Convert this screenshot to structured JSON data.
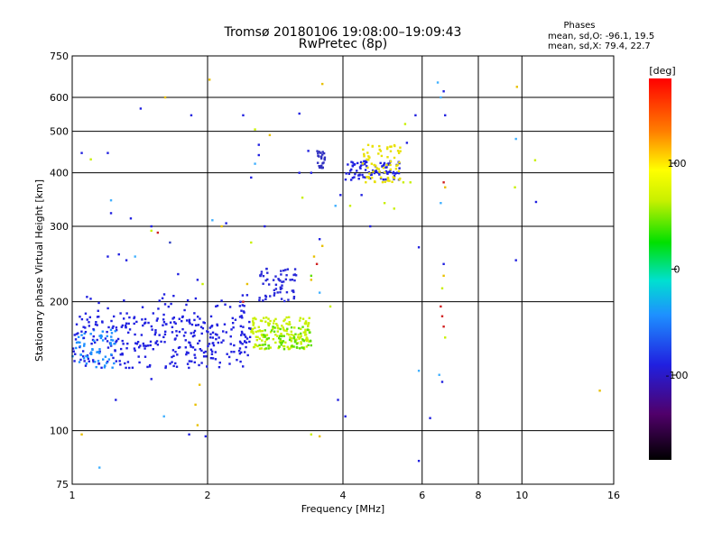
{
  "chart_data": {
    "type": "scatter",
    "title": "Tromsø 20180106 19:08:00–19:09:43",
    "subtitle": "RwPretec (8p)",
    "xlabel": "Frequency [MHz]",
    "ylabel": "Stationary phase Virtual Height [km]",
    "x_scale": "log",
    "y_scale": "log",
    "xlim": [
      1,
      16
    ],
    "ylim": [
      75,
      750
    ],
    "x_ticks": [
      1,
      2,
      4,
      6,
      8,
      10,
      16
    ],
    "y_ticks": [
      75,
      100,
      200,
      300,
      400,
      500,
      600,
      750
    ],
    "grid": true,
    "stats": {
      "heading": "Phases",
      "line_o": "mean, sd,O:  -96.1, 19.5",
      "line_x": "mean, sd,X:  79.4, 22.7"
    },
    "colorbar": {
      "label": "[deg]",
      "min": -180,
      "max": 180,
      "ticks": [
        100,
        0,
        -100
      ]
    },
    "clusters": [
      {
        "name": "o-low",
        "color": "#2020e0",
        "x_range": [
          1.0,
          2.45
        ],
        "y_range": [
          140,
          185
        ],
        "count": 260
      },
      {
        "name": "o-low-cyan",
        "color": "#1e90ff",
        "x_range": [
          1.0,
          1.25
        ],
        "y_range": [
          140,
          172
        ],
        "count": 60
      },
      {
        "name": "o-spread",
        "color": "#2020e0",
        "x_range": [
          1.05,
          2.3
        ],
        "y_range": [
          160,
          210
        ],
        "count": 70
      },
      {
        "name": "o-steep",
        "color": "#2020e0",
        "x_range": [
          2.35,
          2.5
        ],
        "y_range": [
          150,
          215
        ],
        "count": 30
      },
      {
        "name": "o-mid",
        "color": "#2828d8",
        "x_range": [
          2.6,
          3.15
        ],
        "y_range": [
          200,
          240
        ],
        "count": 60
      },
      {
        "name": "x-low",
        "color": "#c8f000",
        "x_range": [
          2.5,
          3.4
        ],
        "y_range": [
          155,
          185
        ],
        "count": 150
      },
      {
        "name": "x-green",
        "color": "#60e000",
        "x_range": [
          2.6,
          3.4
        ],
        "y_range": [
          155,
          175
        ],
        "count": 60
      },
      {
        "name": "o-high",
        "color": "#2020e0",
        "x_range": [
          4.05,
          5.35
        ],
        "y_range": [
          385,
          430
        ],
        "count": 90
      },
      {
        "name": "x-high",
        "color": "#e8e000",
        "x_range": [
          4.4,
          5.4
        ],
        "y_range": [
          380,
          465
        ],
        "count": 70
      },
      {
        "name": "o-high-2",
        "color": "#3030c0",
        "x_range": [
          3.5,
          3.65
        ],
        "y_range": [
          410,
          450
        ],
        "count": 25
      }
    ],
    "scatter_points": [
      {
        "x": 1.42,
        "y": 565,
        "color": "#2020e0"
      },
      {
        "x": 1.84,
        "y": 545,
        "color": "#2020e0"
      },
      {
        "x": 2.4,
        "y": 545,
        "color": "#2020e0"
      },
      {
        "x": 1.61,
        "y": 600,
        "color": "#e8c000"
      },
      {
        "x": 2.02,
        "y": 660,
        "color": "#e8c000"
      },
      {
        "x": 3.6,
        "y": 645,
        "color": "#e8c000"
      },
      {
        "x": 3.2,
        "y": 550,
        "color": "#2020e0"
      },
      {
        "x": 1.05,
        "y": 445,
        "color": "#2020e0"
      },
      {
        "x": 1.2,
        "y": 445,
        "color": "#2020e0"
      },
      {
        "x": 1.1,
        "y": 430,
        "color": "#c8f000"
      },
      {
        "x": 1.22,
        "y": 345,
        "color": "#40b0ff"
      },
      {
        "x": 1.22,
        "y": 322,
        "color": "#2020e0"
      },
      {
        "x": 1.35,
        "y": 313,
        "color": "#2020e0"
      },
      {
        "x": 1.5,
        "y": 300,
        "color": "#2020e0"
      },
      {
        "x": 1.5,
        "y": 293,
        "color": "#c8f000"
      },
      {
        "x": 1.65,
        "y": 275,
        "color": "#3040c0"
      },
      {
        "x": 1.55,
        "y": 290,
        "color": "#d02020"
      },
      {
        "x": 2.05,
        "y": 310,
        "color": "#40b0ff"
      },
      {
        "x": 2.2,
        "y": 305,
        "color": "#2020e0"
      },
      {
        "x": 2.15,
        "y": 300,
        "color": "#e8c000"
      },
      {
        "x": 2.5,
        "y": 390,
        "color": "#2020e0"
      },
      {
        "x": 2.55,
        "y": 505,
        "color": "#c8f000"
      },
      {
        "x": 2.6,
        "y": 465,
        "color": "#2020e0"
      },
      {
        "x": 2.6,
        "y": 440,
        "color": "#2020e0"
      },
      {
        "x": 2.55,
        "y": 420,
        "color": "#40b0ff"
      },
      {
        "x": 2.68,
        "y": 300,
        "color": "#2020e0"
      },
      {
        "x": 2.75,
        "y": 490,
        "color": "#e8c000"
      },
      {
        "x": 3.2,
        "y": 400,
        "color": "#2020e0"
      },
      {
        "x": 3.25,
        "y": 350,
        "color": "#c8f000"
      },
      {
        "x": 3.35,
        "y": 450,
        "color": "#2020e0"
      },
      {
        "x": 3.4,
        "y": 400,
        "color": "#2020e0"
      },
      {
        "x": 3.55,
        "y": 280,
        "color": "#2020e0"
      },
      {
        "x": 3.6,
        "y": 270,
        "color": "#e8c000"
      },
      {
        "x": 3.4,
        "y": 230,
        "color": "#60e000"
      },
      {
        "x": 3.55,
        "y": 210,
        "color": "#40b0ff"
      },
      {
        "x": 3.75,
        "y": 195,
        "color": "#c8f000"
      },
      {
        "x": 3.95,
        "y": 355,
        "color": "#2020e0"
      },
      {
        "x": 3.85,
        "y": 335,
        "color": "#40b0ff"
      },
      {
        "x": 4.15,
        "y": 335,
        "color": "#c8f000"
      },
      {
        "x": 4.4,
        "y": 355,
        "color": "#2020e0"
      },
      {
        "x": 4.6,
        "y": 300,
        "color": "#2020e0"
      },
      {
        "x": 4.95,
        "y": 340,
        "color": "#c8f000"
      },
      {
        "x": 5.2,
        "y": 330,
        "color": "#c8f000"
      },
      {
        "x": 5.5,
        "y": 520,
        "color": "#c8f000"
      },
      {
        "x": 5.55,
        "y": 470,
        "color": "#2020e0"
      },
      {
        "x": 5.45,
        "y": 380,
        "color": "#c8f000"
      },
      {
        "x": 5.65,
        "y": 380,
        "color": "#c8f000"
      },
      {
        "x": 5.8,
        "y": 545,
        "color": "#2020e0"
      },
      {
        "x": 5.9,
        "y": 268,
        "color": "#2020e0"
      },
      {
        "x": 6.5,
        "y": 650,
        "color": "#40b0ff"
      },
      {
        "x": 6.7,
        "y": 620,
        "color": "#2020e0"
      },
      {
        "x": 6.6,
        "y": 600,
        "color": "#40b0ff"
      },
      {
        "x": 6.75,
        "y": 545,
        "color": "#2020e0"
      },
      {
        "x": 6.7,
        "y": 380,
        "color": "#d02020"
      },
      {
        "x": 6.75,
        "y": 370,
        "color": "#e8c000"
      },
      {
        "x": 6.6,
        "y": 340,
        "color": "#40b0ff"
      },
      {
        "x": 6.7,
        "y": 245,
        "color": "#2020e0"
      },
      {
        "x": 6.7,
        "y": 230,
        "color": "#e8c000"
      },
      {
        "x": 6.65,
        "y": 215,
        "color": "#c8f000"
      },
      {
        "x": 6.6,
        "y": 195,
        "color": "#d02020"
      },
      {
        "x": 6.65,
        "y": 185,
        "color": "#d02020"
      },
      {
        "x": 6.7,
        "y": 175,
        "color": "#d02020"
      },
      {
        "x": 6.75,
        "y": 165,
        "color": "#c8f000"
      },
      {
        "x": 6.55,
        "y": 135,
        "color": "#40b0ff"
      },
      {
        "x": 6.65,
        "y": 130,
        "color": "#2020e0"
      },
      {
        "x": 5.9,
        "y": 138,
        "color": "#40b0ff"
      },
      {
        "x": 5.9,
        "y": 85,
        "color": "#2020e0"
      },
      {
        "x": 6.25,
        "y": 107,
        "color": "#2020e0"
      },
      {
        "x": 9.75,
        "y": 635,
        "color": "#e8c000"
      },
      {
        "x": 9.7,
        "y": 480,
        "color": "#40b0ff"
      },
      {
        "x": 9.65,
        "y": 370,
        "color": "#c8f000"
      },
      {
        "x": 9.7,
        "y": 250,
        "color": "#2020e0"
      },
      {
        "x": 10.7,
        "y": 428,
        "color": "#c8f000"
      },
      {
        "x": 10.75,
        "y": 342,
        "color": "#2020e0"
      },
      {
        "x": 14.9,
        "y": 124,
        "color": "#e8c000"
      },
      {
        "x": 1.05,
        "y": 98,
        "color": "#e8c000"
      },
      {
        "x": 1.15,
        "y": 82,
        "color": "#40b0ff"
      },
      {
        "x": 1.25,
        "y": 118,
        "color": "#2020e0"
      },
      {
        "x": 1.5,
        "y": 132,
        "color": "#2020e0"
      },
      {
        "x": 1.6,
        "y": 108,
        "color": "#40b0ff"
      },
      {
        "x": 1.82,
        "y": 98,
        "color": "#2020e0"
      },
      {
        "x": 1.88,
        "y": 115,
        "color": "#e8c000"
      },
      {
        "x": 1.92,
        "y": 128,
        "color": "#e8c000"
      },
      {
        "x": 1.9,
        "y": 103,
        "color": "#e8c000"
      },
      {
        "x": 1.98,
        "y": 97,
        "color": "#2020e0"
      },
      {
        "x": 3.4,
        "y": 98,
        "color": "#c8f000"
      },
      {
        "x": 3.55,
        "y": 97,
        "color": "#e8c000"
      },
      {
        "x": 3.9,
        "y": 118,
        "color": "#2020e0"
      },
      {
        "x": 4.05,
        "y": 108,
        "color": "#2020e0"
      },
      {
        "x": 1.2,
        "y": 255,
        "color": "#2020e0"
      },
      {
        "x": 1.27,
        "y": 258,
        "color": "#2020e0"
      },
      {
        "x": 1.38,
        "y": 255,
        "color": "#40b0ff"
      },
      {
        "x": 1.32,
        "y": 250,
        "color": "#2020e0"
      },
      {
        "x": 1.72,
        "y": 232,
        "color": "#2020e0"
      },
      {
        "x": 1.9,
        "y": 225,
        "color": "#2020e0"
      },
      {
        "x": 1.95,
        "y": 220,
        "color": "#c8f000"
      },
      {
        "x": 2.45,
        "y": 220,
        "color": "#e8c000"
      },
      {
        "x": 2.4,
        "y": 200,
        "color": "#d02020"
      },
      {
        "x": 2.5,
        "y": 275,
        "color": "#c8f000"
      },
      {
        "x": 3.45,
        "y": 255,
        "color": "#e8c000"
      },
      {
        "x": 3.5,
        "y": 245,
        "color": "#d02020"
      },
      {
        "x": 3.4,
        "y": 225,
        "color": "#e8c000"
      }
    ]
  }
}
